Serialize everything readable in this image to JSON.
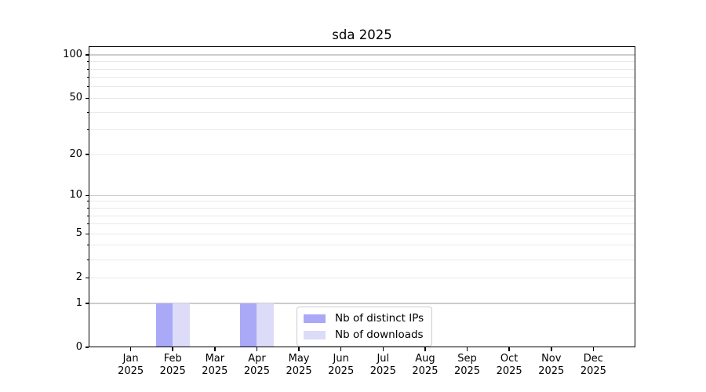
{
  "chart_data": {
    "type": "bar",
    "title": "sda 2025",
    "categories": [
      "Jan",
      "Feb",
      "Mar",
      "Apr",
      "May",
      "Jun",
      "Jul",
      "Aug",
      "Sep",
      "Oct",
      "Nov",
      "Dec"
    ],
    "category_year": "2025",
    "series": [
      {
        "name": "Nb of distinct IPs",
        "color": "#a9a9f7",
        "values": [
          0,
          1,
          0,
          1,
          0,
          0,
          0,
          0,
          0,
          0,
          0,
          0
        ]
      },
      {
        "name": "Nb of downloads",
        "color": "#dcdcf8",
        "values": [
          0,
          1,
          0,
          1,
          0,
          0,
          0,
          0,
          0,
          0,
          0,
          0
        ]
      }
    ],
    "xlabel": "",
    "ylabel": "",
    "yscale": "log1p",
    "ylim": [
      0,
      115
    ],
    "yticks": [
      0,
      1,
      2,
      5,
      10,
      20,
      50,
      100
    ],
    "y_major_grid": [
      1,
      10,
      100
    ],
    "y_minor_grid": [
      2,
      3,
      4,
      5,
      6,
      7,
      8,
      9,
      20,
      30,
      40,
      50,
      60,
      70,
      80,
      90
    ],
    "grid": true,
    "legend_position": "lower center"
  },
  "colors": {
    "background": "#ffffff",
    "spine": "#000000",
    "text": "#000000",
    "major_grid": "#cccccc",
    "minor_grid": "#e9e9e9",
    "legend_border": "#cccccc"
  }
}
